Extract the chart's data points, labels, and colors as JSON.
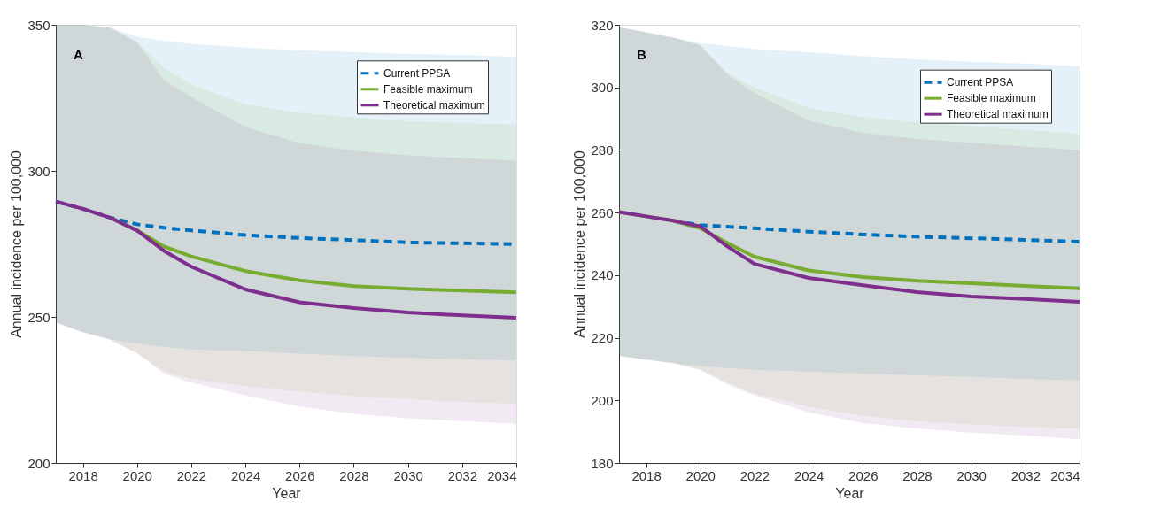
{
  "chart_data": [
    {
      "type": "line",
      "xlabel": "Year",
      "ylabel": "Annual incidence per 100,000",
      "annotations": [
        "A"
      ],
      "legend": "top right",
      "grid": false,
      "x": [
        2017,
        2018,
        2019,
        2020,
        2021,
        2022,
        2024,
        2026,
        2028,
        2030,
        2032,
        2034
      ],
      "xlim": [
        2017,
        2034
      ],
      "xticks": [
        2018,
        2020,
        2022,
        2024,
        2026,
        2028,
        2030,
        2032,
        2034
      ],
      "ylim": [
        200,
        350
      ],
      "yticks": [
        200,
        250,
        300,
        350
      ],
      "series": [
        {
          "name": "Current PPSA",
          "color": "#0072bd",
          "line_style": "dashed",
          "values": [
            289.5,
            287,
            284,
            281.7,
            280.5,
            279.6,
            278,
            277,
            276.3,
            275.5,
            275.2,
            274.9
          ],
          "lower": [
            248.1,
            244.8,
            242.3,
            240.8,
            239.7,
            238.9,
            238.3,
            237.4,
            236.6,
            236,
            235.5,
            235.1
          ],
          "upper": [
            350,
            350,
            349,
            346,
            344.5,
            343.5,
            342.2,
            341.3,
            340.7,
            340,
            339.7,
            339
          ]
        },
        {
          "name": "Feasible maximum",
          "color": "#77ac30",
          "line_style": "solid",
          "values": [
            null,
            null,
            284,
            279.6,
            274.1,
            270.7,
            265.7,
            262.5,
            260.5,
            259.6,
            259,
            258.4
          ],
          "lower": [
            248.1,
            244.8,
            242.3,
            237.6,
            231.3,
            228.8,
            226.3,
            224.4,
            222.9,
            221.9,
            220.8,
            220.3
          ],
          "upper": [
            350,
            350,
            349,
            344.1,
            335.3,
            329.6,
            322.7,
            319.9,
            318.3,
            317,
            316.4,
            315.8
          ]
        },
        {
          "name": "Theoretical maximum",
          "color": "#7e2f8e",
          "line_style": "solid",
          "values": [
            289.5,
            287,
            284,
            279.6,
            272.6,
            267.2,
            259.4,
            255,
            253,
            251.5,
            250.5,
            249.7
          ],
          "lower": [
            248.1,
            244.8,
            242.3,
            237.6,
            230.6,
            227.5,
            223.1,
            219.3,
            216.8,
            215.3,
            214.3,
            213.4
          ],
          "upper": [
            350,
            350,
            349,
            344.1,
            330.9,
            325.2,
            315.1,
            309.5,
            306.9,
            305.3,
            304.4,
            303.5
          ]
        }
      ]
    },
    {
      "type": "line",
      "xlabel": "Year",
      "ylabel": "Annual incidence per 100,000",
      "annotations": [
        "B"
      ],
      "legend": "top right",
      "grid": false,
      "x": [
        2017,
        2018,
        2019,
        2020,
        2021,
        2022,
        2024,
        2026,
        2028,
        2030,
        2032,
        2034
      ],
      "xlim": [
        2017,
        2034
      ],
      "xticks": [
        2018,
        2020,
        2022,
        2024,
        2026,
        2028,
        2030,
        2032,
        2034
      ],
      "ylim": [
        180,
        320
      ],
      "yticks": [
        180,
        200,
        220,
        240,
        260,
        280,
        300,
        320
      ],
      "series": [
        {
          "name": "Current PPSA",
          "color": "#0072bd",
          "line_style": "dashed",
          "values": [
            null,
            null,
            257.4,
            256,
            255.5,
            255,
            253.9,
            253,
            252.3,
            251.8,
            251.3,
            250.7
          ],
          "lower": [
            214.2,
            213,
            211.9,
            211,
            210.3,
            209.8,
            209.2,
            208.6,
            208,
            207.5,
            206.9,
            206.3
          ],
          "upper": [
            319.2,
            317.6,
            315.9,
            314.1,
            313.2,
            312.3,
            311.2,
            310,
            309,
            308.2,
            307.6,
            306.8
          ]
        },
        {
          "name": "Feasible maximum",
          "color": "#77ac30",
          "line_style": "solid",
          "values": [
            260.2,
            258.8,
            257.4,
            255,
            250.3,
            245.9,
            241.5,
            239.4,
            238.2,
            237.4,
            236.6,
            235.8
          ],
          "lower": [
            214.2,
            213,
            211.9,
            209.8,
            205.7,
            202.1,
            198,
            195.1,
            193.3,
            192.3,
            191.5,
            190.9
          ],
          "upper": [
            319.2,
            317.6,
            315.9,
            313.5,
            304.7,
            300,
            293.5,
            290.6,
            288.8,
            287.6,
            286.4,
            285.2
          ]
        },
        {
          "name": "Theoretical maximum",
          "color": "#7e2f8e",
          "line_style": "solid",
          "values": [
            260.2,
            258.8,
            257.4,
            255.6,
            249.2,
            243.6,
            239.1,
            236.8,
            234.6,
            233.2,
            232.4,
            231.5
          ],
          "lower": [
            214.2,
            213,
            211.9,
            209.8,
            205.1,
            201.6,
            196.2,
            192.7,
            191,
            189.7,
            188.8,
            187.6
          ],
          "upper": [
            319.2,
            317.6,
            315.9,
            313.5,
            304.1,
            298.2,
            289.4,
            285.5,
            283.5,
            282.3,
            281.1,
            280
          ]
        }
      ]
    }
  ]
}
